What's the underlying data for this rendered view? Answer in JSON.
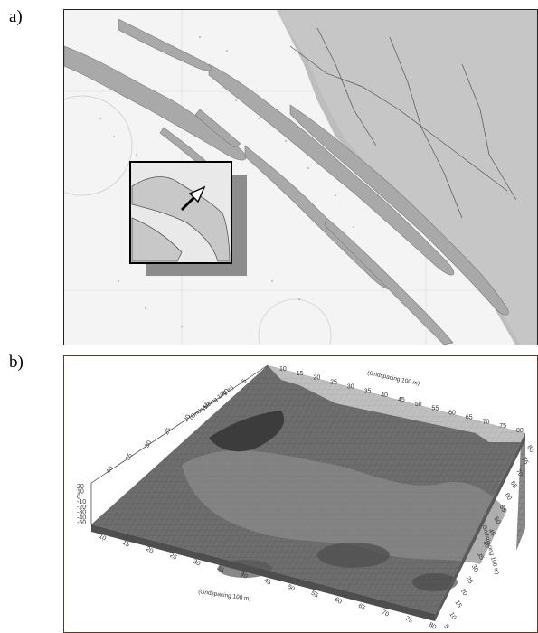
{
  "panels": {
    "a": {
      "label": "a)"
    },
    "b": {
      "label": "b)"
    }
  },
  "figure_b": {
    "axis_x_title": "(Gridspacing 100 m)",
    "axis_y_title": "(Gridspacing 100 m)",
    "axis_back_title": "(Gridspacing 100 m)",
    "axis_z_title": "(Gridspacing 100 m)",
    "x_ticks_front": [
      "10",
      "15",
      "20",
      "25",
      "30",
      "35",
      "40",
      "45",
      "50",
      "55",
      "60",
      "65",
      "70",
      "75",
      "80"
    ],
    "x_ticks_back": [
      "10",
      "15",
      "20",
      "25",
      "30",
      "35",
      "40",
      "45",
      "50",
      "55",
      "60",
      "65",
      "70",
      "75",
      "80"
    ],
    "y_ticks_right": [
      "80",
      "75",
      "70",
      "65",
      "60",
      "55",
      "50",
      "45",
      "40",
      "35",
      "30",
      "25",
      "20",
      "15",
      "10",
      "5"
    ],
    "y_ticks_left": [
      "40",
      "35",
      "30",
      "25",
      "20",
      "15",
      "10",
      "5"
    ],
    "z_ticks": [
      "20",
      "10",
      "0",
      "-10",
      "-20",
      "-30",
      "-40",
      "-50"
    ]
  },
  "colors": {
    "chart_bg": "#f2f2f2",
    "island": "#a9a9a9",
    "surface": "#6e6e6e",
    "frame_b": "#5a3c2a"
  }
}
